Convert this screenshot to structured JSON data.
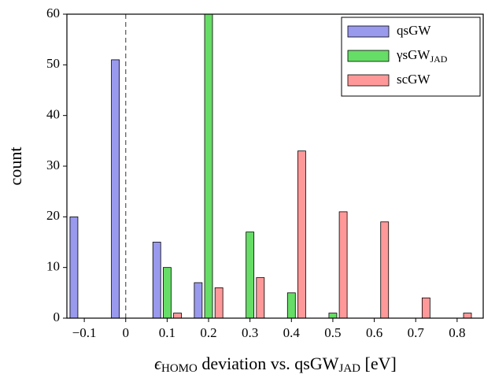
{
  "chart_data": {
    "type": "bar",
    "xlabel": {
      "symbol": "ϵ",
      "symbol_sub": "HOMO",
      "text": " deviation vs. qsGW",
      "text_sub": "JAD",
      "unit": " [eV]"
    },
    "ylabel": "count",
    "series": [
      {
        "name": "qsGW",
        "color": "#9999ee",
        "x": [
          -0.125,
          -0.025,
          0.075,
          0.175,
          0.275,
          0.375,
          0.475,
          0.575,
          0.675,
          0.775
        ],
        "values": [
          20,
          51,
          15,
          7,
          0,
          0,
          0,
          0,
          0,
          0
        ]
      },
      {
        "name": "γsGW",
        "name_sub": "JAD",
        "color": "#66dd66",
        "x": [
          -0.1,
          0,
          0.1,
          0.2,
          0.3,
          0.4,
          0.5,
          0.6,
          0.7,
          0.8
        ],
        "values": [
          0,
          0,
          10,
          60,
          17,
          5,
          1,
          0,
          0,
          0
        ]
      },
      {
        "name": "scGW",
        "color": "#ff9999",
        "x": [
          -0.075,
          0.025,
          0.125,
          0.225,
          0.325,
          0.425,
          0.525,
          0.625,
          0.725,
          0.825
        ],
        "values": [
          0,
          0,
          1,
          6,
          8,
          33,
          21,
          19,
          4,
          1
        ]
      }
    ],
    "xlim": [
      -0.142,
      0.863
    ],
    "xticks": [
      {
        "value": -0.1,
        "label": "−0.1"
      },
      0,
      0.1,
      0.2,
      0.3,
      0.4,
      0.5,
      0.6,
      0.7,
      0.8
    ],
    "ylim": [
      0,
      60
    ],
    "yticks": [
      0,
      10,
      20,
      30,
      40,
      50,
      60
    ],
    "vline": 0,
    "legend": "upper right"
  }
}
